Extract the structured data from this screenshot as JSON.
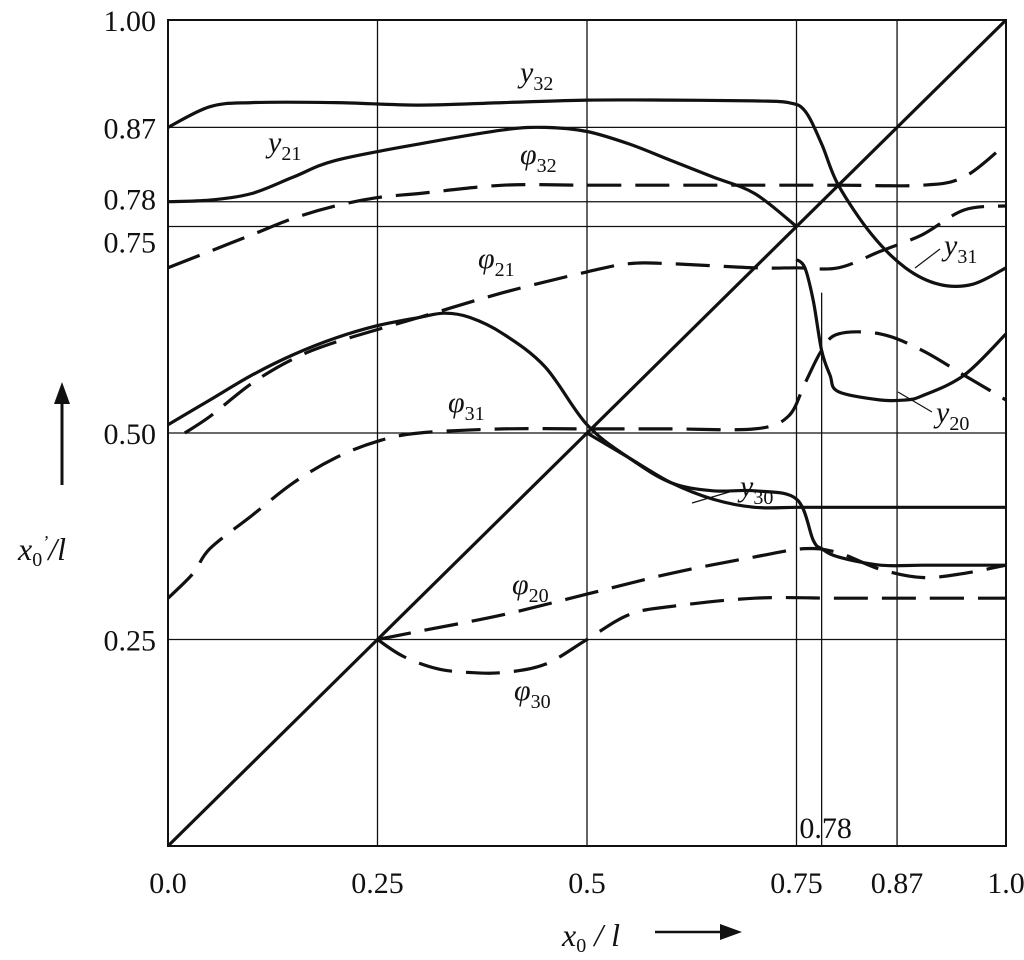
{
  "chart_data": {
    "type": "line",
    "title": "",
    "xlabel": "x0 / l",
    "ylabel": "x0'/l",
    "xlim": [
      0,
      1
    ],
    "ylim": [
      0,
      1
    ],
    "x_ticks": [
      {
        "value": 0.0,
        "label": "0.0"
      },
      {
        "value": 0.25,
        "label": "0.25"
      },
      {
        "value": 0.5,
        "label": "0.5"
      },
      {
        "value": 0.75,
        "label": "0.75"
      },
      {
        "value": 0.87,
        "label": "0.87"
      },
      {
        "value": 1.0,
        "label": "1.0"
      }
    ],
    "y_ticks": [
      {
        "value": 1.0,
        "label": "1.00"
      },
      {
        "value": 0.87,
        "label": "0.87"
      },
      {
        "value": 0.78,
        "label": "0.78"
      },
      {
        "value": 0.75,
        "label": "0.75"
      },
      {
        "value": 0.5,
        "label": "0.50"
      },
      {
        "value": 0.25,
        "label": "0.25"
      }
    ],
    "grid_x": [
      0.25,
      0.5,
      0.75,
      0.87
    ],
    "grid_y": [
      0.25,
      0.5,
      0.75,
      0.78,
      0.87
    ],
    "annotations": [
      {
        "text": "0.78",
        "x": 0.78,
        "y": 0.0
      }
    ],
    "marker_line": {
      "x": 0.78,
      "y_from": 0.0,
      "y_to": 0.67
    },
    "diagonal": {
      "x": [
        0,
        1
      ],
      "y": [
        0,
        1
      ]
    },
    "series": [
      {
        "name": "y32",
        "style": "solid",
        "x": [
          0,
          0.05,
          0.1,
          0.2,
          0.3,
          0.4,
          0.5,
          0.6,
          0.7,
          0.74,
          0.76,
          0.78,
          0.8,
          0.84,
          0.88,
          0.92,
          0.96,
          1.0
        ],
        "y": [
          0.87,
          0.895,
          0.9,
          0.9,
          0.897,
          0.9,
          0.903,
          0.903,
          0.902,
          0.9,
          0.89,
          0.85,
          0.8,
          0.74,
          0.7,
          0.68,
          0.68,
          0.7
        ]
      },
      {
        "name": "y21",
        "style": "solid",
        "x": [
          0,
          0.05,
          0.1,
          0.15,
          0.2,
          0.3,
          0.4,
          0.45,
          0.5,
          0.55,
          0.6,
          0.65,
          0.7,
          0.75
        ],
        "y": [
          0.78,
          0.782,
          0.79,
          0.81,
          0.83,
          0.85,
          0.867,
          0.87,
          0.865,
          0.85,
          0.83,
          0.81,
          0.79,
          0.75
        ]
      },
      {
        "name": "φ32",
        "style": "dashed",
        "x": [
          0,
          0.05,
          0.1,
          0.15,
          0.2,
          0.25,
          0.3,
          0.4,
          0.5,
          0.6,
          0.7,
          0.8,
          0.9,
          0.95,
          1.0
        ],
        "y": [
          0.7,
          0.72,
          0.74,
          0.76,
          0.775,
          0.785,
          0.79,
          0.8,
          0.8,
          0.8,
          0.8,
          0.8,
          0.8,
          0.81,
          0.85
        ]
      },
      {
        "name": "φ21",
        "style": "dashed",
        "x": [
          0.02,
          0.05,
          0.1,
          0.15,
          0.2,
          0.3,
          0.4,
          0.5,
          0.55,
          0.6,
          0.7,
          0.75,
          0.8,
          0.85,
          0.9,
          0.95,
          1.0
        ],
        "y": [
          0.5,
          0.52,
          0.56,
          0.59,
          0.61,
          0.64,
          0.67,
          0.695,
          0.705,
          0.705,
          0.7,
          0.7,
          0.7,
          0.72,
          0.74,
          0.77,
          0.775
        ]
      },
      {
        "name": "y31",
        "style": "solid",
        "x": [
          0,
          0.05,
          0.1,
          0.15,
          0.2,
          0.25,
          0.3,
          0.33,
          0.36,
          0.4,
          0.45,
          0.5,
          0.55,
          0.6,
          0.65,
          0.7,
          0.75,
          0.77,
          0.78,
          0.8,
          0.85,
          0.9,
          0.95,
          1.0
        ],
        "y": [
          0.51,
          0.54,
          0.57,
          0.595,
          0.615,
          0.63,
          0.64,
          0.645,
          0.64,
          0.62,
          0.58,
          0.51,
          0.47,
          0.44,
          0.43,
          0.43,
          0.42,
          0.37,
          0.36,
          0.35,
          0.34,
          0.34,
          0.34,
          0.34
        ]
      },
      {
        "name": "y20",
        "style": "solid",
        "x": [
          0.75,
          0.76,
          0.77,
          0.78,
          0.79,
          0.8,
          0.85,
          0.88,
          0.9,
          0.95,
          1.0
        ],
        "y": [
          0.71,
          0.7,
          0.66,
          0.6,
          0.57,
          0.55,
          0.54,
          0.54,
          0.545,
          0.57,
          0.62
        ]
      },
      {
        "name": "φ31",
        "style": "dashed",
        "x": [
          0.0,
          0.03,
          0.05,
          0.1,
          0.15,
          0.2,
          0.25,
          0.3,
          0.4,
          0.5,
          0.6,
          0.7,
          0.74,
          0.76,
          0.78,
          0.8,
          0.85,
          0.9,
          0.95,
          1.0
        ],
        "y": [
          0.3,
          0.33,
          0.36,
          0.4,
          0.44,
          0.47,
          0.49,
          0.5,
          0.505,
          0.505,
          0.505,
          0.505,
          0.52,
          0.56,
          0.6,
          0.62,
          0.62,
          0.6,
          0.57,
          0.54
        ]
      },
      {
        "name": "y30",
        "style": "solid",
        "x": [
          0.5,
          0.55,
          0.6,
          0.65,
          0.7,
          0.75,
          0.8,
          0.9,
          1.0
        ],
        "y": [
          0.5,
          0.47,
          0.44,
          0.42,
          0.41,
          0.41,
          0.41,
          0.41,
          0.41
        ]
      },
      {
        "name": "φ20",
        "style": "dashed",
        "x": [
          0.25,
          0.3,
          0.4,
          0.5,
          0.6,
          0.7,
          0.76,
          0.8,
          0.85,
          0.9,
          0.95,
          1.0
        ],
        "y": [
          0.25,
          0.26,
          0.28,
          0.305,
          0.33,
          0.35,
          0.36,
          0.355,
          0.335,
          0.325,
          0.33,
          0.34
        ]
      },
      {
        "name": "φ30",
        "style": "dashed",
        "x": [
          0.25,
          0.28,
          0.32,
          0.36,
          0.4,
          0.45,
          0.5,
          0.55,
          0.6,
          0.7,
          0.8,
          0.9,
          1.0
        ],
        "y": [
          0.25,
          0.23,
          0.215,
          0.21,
          0.21,
          0.22,
          0.25,
          0.28,
          0.29,
          0.3,
          0.3,
          0.3,
          0.3
        ]
      }
    ]
  }
}
